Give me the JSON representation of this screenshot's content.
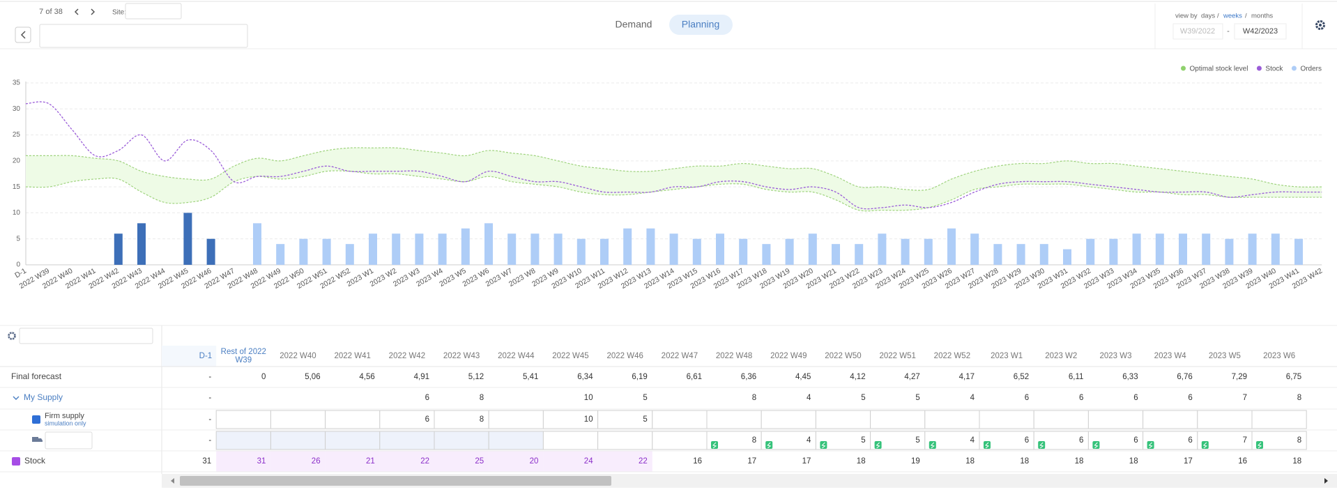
{
  "header": {
    "pager": "7 of 38",
    "site_label": "Site:",
    "tabs": [
      "Demand",
      "Planning"
    ],
    "view_by_label": "view by",
    "view_options": [
      "days",
      "weeks",
      "months"
    ],
    "separator": "/",
    "range_from": "W39/2022",
    "range_dash": "-",
    "range_to": "W42/2023"
  },
  "chart_data": {
    "type": "combo",
    "categories": [
      "D-1",
      "2022 W39",
      "2022 W40",
      "2022 W41",
      "2022 W42",
      "2022 W43",
      "2022 W44",
      "2022 W45",
      "2022 W46",
      "2022 W47",
      "2022 W48",
      "2022 W49",
      "2022 W50",
      "2022 W51",
      "2022 W52",
      "2023 W1",
      "2023 W2",
      "2023 W3",
      "2023 W4",
      "2023 W5",
      "2023 W6",
      "2023 W7",
      "2023 W8",
      "2023 W9",
      "2023 W10",
      "2023 W11",
      "2023 W12",
      "2023 W13",
      "2023 W14",
      "2023 W15",
      "2023 W16",
      "2023 W17",
      "2023 W18",
      "2023 W19",
      "2023 W20",
      "2023 W21",
      "2023 W22",
      "2023 W23",
      "2023 W24",
      "2023 W25",
      "2023 W26",
      "2023 W27",
      "2023 W28",
      "2023 W29",
      "2023 W30",
      "2023 W31",
      "2023 W32",
      "2023 W33",
      "2023 W34",
      "2023 W35",
      "2023 W36",
      "2023 W37",
      "2023 W38",
      "2023 W39",
      "2023 W40",
      "2023 W41",
      "2023 W42"
    ],
    "ylim": [
      0,
      35
    ],
    "yticks": [
      0,
      5,
      10,
      15,
      20,
      25,
      30,
      35
    ],
    "grid": true,
    "legend": "top-right",
    "series": [
      {
        "name": "Optimal stock level",
        "type": "band",
        "color": "#8fd16d",
        "line_color": "#9fd37e",
        "fill": "#eefbe6",
        "upper": [
          21,
          21,
          21,
          20.5,
          20,
          18,
          17,
          16.5,
          16.5,
          19,
          20.5,
          20,
          21,
          22,
          22.5,
          22.5,
          22.5,
          22,
          21.5,
          21,
          22,
          21.5,
          21,
          20,
          19,
          18.5,
          18,
          18,
          18.5,
          19,
          19,
          19.5,
          19,
          18.5,
          18.5,
          17,
          15,
          15,
          14.5,
          14.5,
          16.5,
          18,
          19,
          19.5,
          19.5,
          20,
          19.5,
          19.5,
          19,
          18.5,
          18,
          17.5,
          17,
          16.5,
          15.5,
          15,
          15
        ],
        "lower": [
          15,
          15,
          16,
          16.5,
          16.5,
          14,
          12,
          12,
          13,
          16,
          17,
          16.5,
          17,
          18,
          18,
          17.5,
          17.5,
          17,
          16.5,
          16,
          17,
          16,
          15.5,
          15,
          14,
          13.5,
          13.5,
          14,
          14.5,
          15,
          15.5,
          15.5,
          14.5,
          14,
          14,
          12.5,
          10.5,
          10.5,
          10.5,
          11,
          12.5,
          14.5,
          15,
          15.5,
          15.5,
          15.5,
          15,
          14.5,
          14,
          14,
          13.5,
          13.5,
          13,
          13,
          13,
          13,
          13
        ]
      },
      {
        "name": "Stock",
        "type": "line",
        "color": "#9a5cd8",
        "values": [
          31,
          31,
          26,
          21,
          22,
          25,
          20,
          24,
          22,
          16,
          17,
          17,
          18,
          19,
          18,
          18,
          18,
          18,
          17,
          16,
          18,
          17,
          16,
          16,
          15,
          14,
          14,
          14,
          15,
          15,
          16,
          16,
          15,
          14.5,
          15,
          14,
          11,
          11,
          11.5,
          11,
          12,
          14,
          15.5,
          16,
          16,
          16,
          15.5,
          15,
          14.5,
          14,
          14,
          14,
          13,
          13.5,
          14,
          14,
          14
        ]
      },
      {
        "name": "Orders",
        "type": "bar",
        "color": "#aecdf7",
        "values": [
          null,
          null,
          null,
          null,
          null,
          null,
          null,
          null,
          null,
          null,
          8,
          4,
          5,
          5,
          4,
          6,
          6,
          6,
          6,
          7,
          8,
          6,
          6,
          6,
          5,
          5,
          7,
          7,
          6,
          5,
          6,
          5,
          4,
          5,
          6,
          4,
          4,
          6,
          5,
          5,
          7,
          6,
          4,
          4,
          4,
          3,
          5,
          5,
          6,
          6,
          6,
          6,
          5,
          6,
          6,
          5,
          null
        ]
      },
      {
        "name": "Firm supply",
        "type": "bar",
        "color": "#3d6fb8",
        "in_legend": false,
        "values": [
          null,
          null,
          null,
          null,
          6,
          8,
          null,
          10,
          5,
          null,
          null,
          null,
          null,
          null,
          null,
          null,
          null,
          null,
          null,
          null,
          null,
          null,
          null,
          null,
          null,
          null,
          null,
          null,
          null,
          null,
          null,
          null,
          null,
          null,
          null,
          null,
          null,
          null,
          null,
          null,
          null,
          null,
          null,
          null,
          null,
          null,
          null,
          null,
          null,
          null,
          null,
          null,
          null,
          null,
          null,
          null,
          null
        ]
      }
    ]
  },
  "table": {
    "columns": [
      "D-1",
      "Rest of 2022 W39",
      "2022 W40",
      "2022 W41",
      "2022 W42",
      "2022 W43",
      "2022 W44",
      "2022 W45",
      "2022 W46",
      "2022 W47",
      "2022 W48",
      "2022 W49",
      "2022 W50",
      "2022 W51",
      "2022 W52",
      "2023 W1",
      "2023 W2",
      "2023 W3",
      "2023 W4",
      "2023 W5",
      "2023 W6"
    ],
    "rows": [
      {
        "label": "Final forecast",
        "cells": [
          "-",
          "0",
          "5,06",
          "4,56",
          "4,91",
          "5,12",
          "5,41",
          "6,34",
          "6,19",
          "6,61",
          "6,36",
          "4,45",
          "4,12",
          "4,27",
          "4,17",
          "6,52",
          "6,11",
          "6,33",
          "6,76",
          "7,29",
          "6,75"
        ]
      },
      {
        "label": "My Supply",
        "cells": [
          "-",
          null,
          null,
          null,
          "6",
          "8",
          null,
          "10",
          "5",
          null,
          "8",
          "4",
          "5",
          "5",
          "4",
          "6",
          "6",
          "6",
          "6",
          "7",
          "8"
        ]
      },
      {
        "label": "Firm supply",
        "sublabel": "simulation only",
        "color": "#2f6fd6",
        "cells": [
          "-",
          null,
          null,
          null,
          "6",
          "8",
          null,
          "10",
          "5",
          null,
          null,
          null,
          null,
          null,
          null,
          null,
          null,
          null,
          null,
          null,
          null
        ]
      },
      {
        "cells": [
          "-",
          null,
          null,
          null,
          null,
          null,
          null,
          null,
          null,
          null,
          "8",
          "4",
          "5",
          "5",
          "4",
          "6",
          "6",
          "6",
          "6",
          "7",
          "8"
        ]
      },
      {
        "label": "Stock",
        "color": "#a64de6",
        "cells": [
          "31",
          "31",
          "26",
          "21",
          "22",
          "25",
          "20",
          "24",
          "22",
          "16",
          "17",
          "17",
          "18",
          "19",
          "18",
          "18",
          "18",
          "18",
          "17",
          "16",
          "18"
        ]
      }
    ]
  }
}
